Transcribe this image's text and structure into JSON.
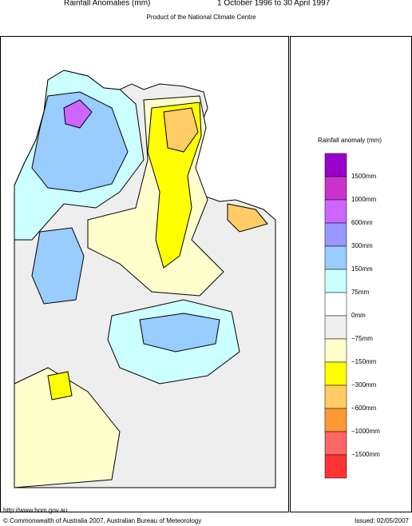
{
  "header": {
    "title": "Rainfall Anomalies (mm)",
    "period": "1 October 1996 to 30 April 1997",
    "subtitle": "Product of the National Climate Centre"
  },
  "legend": {
    "title": "Rainfall anomaly (mm)",
    "colors": [
      "#9900cc",
      "#cc33cc",
      "#cc66ff",
      "#9999ff",
      "#99ccff",
      "#ccffff",
      "#ffffff",
      "#eeeeee",
      "#ffffcc",
      "#ffff00",
      "#ffcc66",
      "#ff9933",
      "#ff6666",
      "#ff3333"
    ],
    "labels": [
      "1500mm",
      "1000mm",
      "600mm",
      "300mm",
      "150mm",
      "75mm",
      "0mm",
      "−75mm",
      "−150mm",
      "−300mm",
      "−600mm",
      "−1000mm",
      "−1500mm"
    ]
  },
  "footer": {
    "url": "http://www.bom.gov.au",
    "copyright": "© Commonwealth of Australia 2007, Australian Bureau of Meteorology",
    "issued": "Issued: 02/05/2007"
  }
}
